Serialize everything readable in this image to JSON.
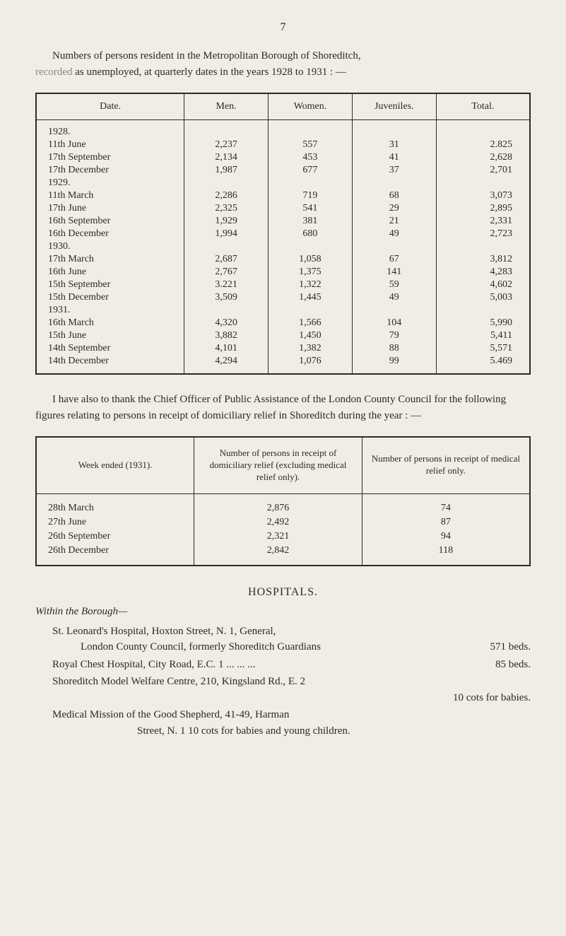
{
  "page_number": "7",
  "intro_paragraph_part1": "Numbers of persons resident in the Metropolitan Borough of Shoreditch,",
  "intro_paragraph_gray": "recorded",
  "intro_paragraph_part2": " as unemployed, at quarterly dates in the years 1928 to 1931 : —",
  "table1": {
    "headers": [
      "Date.",
      "Men.",
      "Women.",
      "Juveniles.",
      "Total."
    ],
    "groups": [
      {
        "year": "1928.",
        "rows": [
          {
            "date": "11th June",
            "men": "2,237",
            "women": "557",
            "juveniles": "31",
            "total": "2.825"
          },
          {
            "date": "17th September",
            "men": "2,134",
            "women": "453",
            "juveniles": "41",
            "total": "2,628"
          },
          {
            "date": "17th December",
            "men": "1,987",
            "women": "677",
            "juveniles": "37",
            "total": "2,701"
          }
        ]
      },
      {
        "year": "1929.",
        "rows": [
          {
            "date": "11th March",
            "men": "2,286",
            "women": "719",
            "juveniles": "68",
            "total": "3,073"
          },
          {
            "date": "17th June",
            "men": "2,325",
            "women": "541",
            "juveniles": "29",
            "total": "2,895"
          },
          {
            "date": "16th September",
            "men": "1,929",
            "women": "381",
            "juveniles": "21",
            "total": "2,331"
          },
          {
            "date": "16th December",
            "men": "1,994",
            "women": "680",
            "juveniles": "49",
            "total": "2,723"
          }
        ]
      },
      {
        "year": "1930.",
        "rows": [
          {
            "date": "17th March",
            "men": "2,687",
            "women": "1,058",
            "juveniles": "67",
            "total": "3,812"
          },
          {
            "date": "16th June",
            "men": "2,767",
            "women": "1,375",
            "juveniles": "141",
            "total": "4,283"
          },
          {
            "date": "15th September",
            "men": "3.221",
            "women": "1,322",
            "juveniles": "59",
            "total": "4,602"
          },
          {
            "date": "15th December",
            "men": "3,509",
            "women": "1,445",
            "juveniles": "49",
            "total": "5,003"
          }
        ]
      },
      {
        "year": "1931.",
        "rows": [
          {
            "date": "16th March",
            "men": "4,320",
            "women": "1,566",
            "juveniles": "104",
            "total": "5,990"
          },
          {
            "date": "15th June",
            "men": "3,882",
            "women": "1,450",
            "juveniles": "79",
            "total": "5,411"
          },
          {
            "date": "14th September",
            "men": "4,101",
            "women": "1,382",
            "juveniles": "88",
            "total": "5,571"
          },
          {
            "date": "14th December",
            "men": "4,294",
            "women": "1,076",
            "juveniles": "99",
            "total": "5.469"
          }
        ]
      }
    ]
  },
  "mid_paragraph": "I have also to thank the Chief Officer of Public Assistance of the London County Council for the following figures relating to persons in receipt of domiciliary relief in Shoreditch during the year : —",
  "table2": {
    "headers": [
      "Week ended (1931).",
      "Number of persons in receipt of domiciliary relief (excluding medical relief only).",
      "Number of persons in receipt of medical relief only."
    ],
    "rows": [
      {
        "date": "28th March",
        "col1": "2,876",
        "col2": "74"
      },
      {
        "date": "27th June",
        "col1": "2,492",
        "col2": "87"
      },
      {
        "date": "26th September",
        "col1": "2,321",
        "col2": "94"
      },
      {
        "date": "26th December",
        "col1": "2,842",
        "col2": "118"
      }
    ]
  },
  "hospitals": {
    "heading": "HOSPITALS.",
    "subheading": "Within the Borough—",
    "entries": [
      {
        "line1": "St. Leonard's Hospital, Hoxton Street, N. 1, General,",
        "line2_left": "London County Council, formerly Shoreditch Guardians",
        "line2_right": "571 beds."
      },
      {
        "line1_left": "Royal Chest Hospital, City Road, E.C. 1   ...      ...      ...",
        "line1_right": "85 beds."
      },
      {
        "line1": "Shoreditch Model Welfare Centre, 210, Kingsland Rd., E. 2",
        "line2_right": "10 cots for babies."
      },
      {
        "line1": "Medical Mission of the Good Shepherd, 41-49, Harman",
        "line2": "Street, N. 1    10 cots for babies and young children."
      }
    ]
  }
}
